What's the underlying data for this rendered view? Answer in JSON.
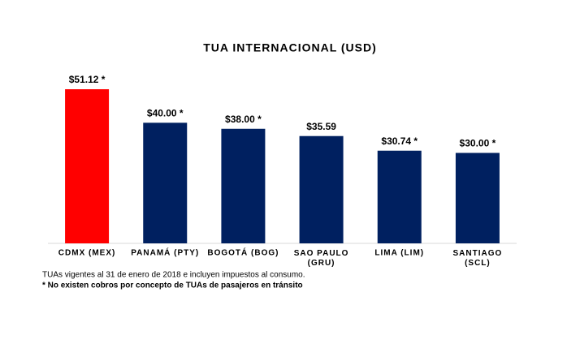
{
  "chart_data": {
    "type": "bar",
    "title": "TUA INTERNACIONAL (USD)",
    "categories": [
      "CDMX (MEX)",
      "PANAMÁ (PTY)",
      "BOGOTÁ (BOG)",
      "SAO PAULO (GRU)",
      "LIMA (LIM)",
      "SANTIAGO (SCL)"
    ],
    "values": [
      51.12,
      40.0,
      38.0,
      35.59,
      30.74,
      30.0
    ],
    "value_labels": [
      "$51.12 *",
      "$40.00 *",
      "$38.00 *",
      "$35.59",
      "$30.74 *",
      "$30.00 *"
    ],
    "colors": [
      "#ff0000",
      "#002060",
      "#002060",
      "#002060",
      "#002060",
      "#002060"
    ],
    "notes": [
      "TUAs vigentes al 31 de enero de 2018 e incluyen impuestos al consumo.",
      "* No existen cobros por concepto de TUAs de pasajeros en tránsito"
    ]
  }
}
